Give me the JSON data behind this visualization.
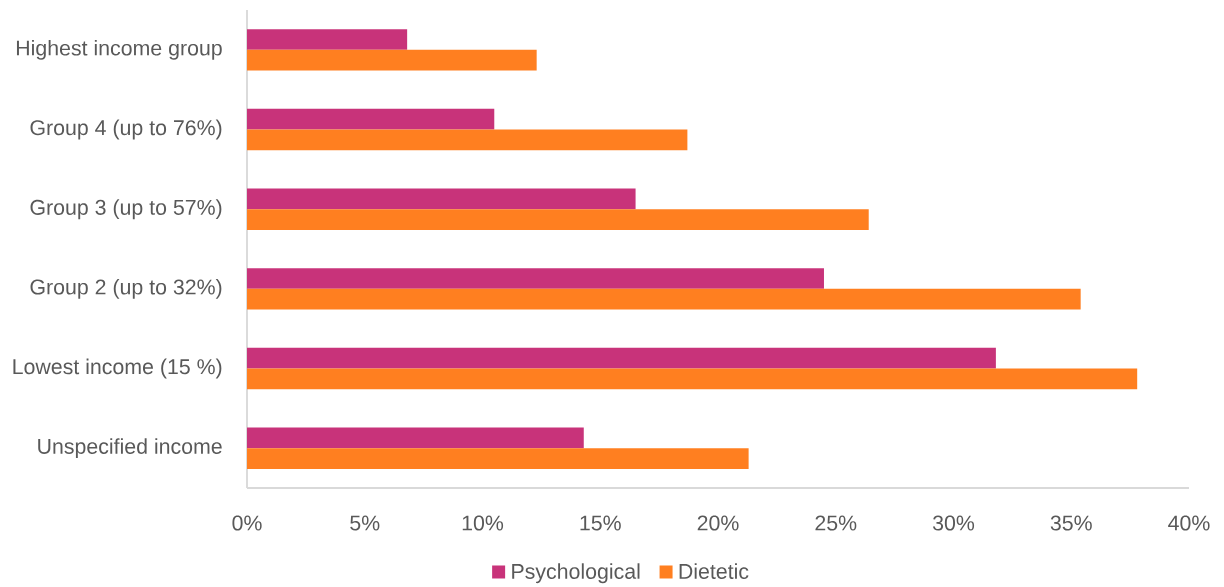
{
  "chart_data": {
    "type": "bar",
    "orientation": "horizontal",
    "categories": [
      "Highest income group",
      "Group 4 (up to 76%)",
      "Group 3 (up to 57%)",
      "Group 2 (up to 32%)",
      "Lowest income (15 %)",
      "Unspecified income"
    ],
    "series": [
      {
        "name": "Psychological",
        "color": "#c8337a",
        "values": [
          6.8,
          10.5,
          16.5,
          24.5,
          31.8,
          14.3
        ]
      },
      {
        "name": "Dietetic",
        "color": "#ff7f20",
        "values": [
          12.3,
          18.7,
          26.4,
          35.4,
          37.8,
          21.3
        ]
      }
    ],
    "xlim": [
      0,
      40
    ],
    "xticks": [
      {
        "value": 0,
        "label": "0%"
      },
      {
        "value": 5,
        "label": "5%"
      },
      {
        "value": 10,
        "label": "10%"
      },
      {
        "value": 15,
        "label": "15%"
      },
      {
        "value": 20,
        "label": "20%"
      },
      {
        "value": 25,
        "label": "25%"
      },
      {
        "value": 30,
        "label": "30%"
      },
      {
        "value": 35,
        "label": "35%"
      },
      {
        "value": 40,
        "label": "40%"
      }
    ],
    "legend": "bottom"
  }
}
